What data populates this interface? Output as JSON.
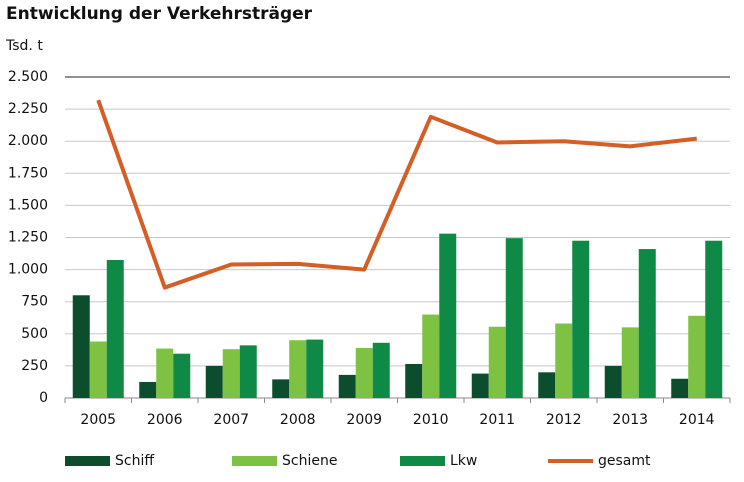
{
  "chart_data": {
    "type": "bar",
    "title": "Entwicklung der Verkehrsträger",
    "y_label": "Tsd. t",
    "categories": [
      "2005",
      "2006",
      "2007",
      "2008",
      "2009",
      "2010",
      "2011",
      "2012",
      "2013",
      "2014"
    ],
    "series": [
      {
        "name": "Schiff",
        "color": "#0b4d2c",
        "values": [
          800,
          125,
          250,
          145,
          180,
          265,
          190,
          200,
          250,
          150
        ]
      },
      {
        "name": "Schiene",
        "color": "#7dc242",
        "values": [
          440,
          385,
          380,
          450,
          390,
          650,
          555,
          580,
          550,
          640
        ]
      },
      {
        "name": "Lkw",
        "color": "#0e8a46",
        "values": [
          1075,
          345,
          410,
          455,
          430,
          1280,
          1245,
          1225,
          1160,
          1225
        ]
      },
      {
        "name": "gesamt",
        "color": "#d35f27",
        "type": "line",
        "values": [
          2320,
          860,
          1040,
          1045,
          1000,
          2190,
          1990,
          2000,
          1960,
          2020
        ]
      }
    ],
    "ylim": [
      0,
      2500
    ],
    "yticks": [
      0,
      250,
      500,
      750,
      {
        "value": 1000,
        "label": "1.000"
      },
      {
        "value": 1250,
        "label": "1.250"
      },
      {
        "value": 1500,
        "label": "1.500"
      },
      {
        "value": 1750,
        "label": "1.750"
      },
      {
        "value": 2000,
        "label": "2.000"
      },
      {
        "value": 2250,
        "label": "2.250"
      },
      {
        "value": 2500,
        "label": "2.500"
      }
    ],
    "grid": true,
    "legend": "bottom"
  }
}
